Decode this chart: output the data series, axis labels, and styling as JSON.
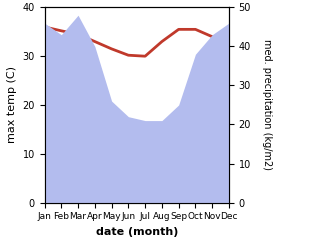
{
  "months": [
    "Jan",
    "Feb",
    "Mar",
    "Apr",
    "May",
    "Jun",
    "Jul",
    "Aug",
    "Sep",
    "Oct",
    "Nov",
    "Dec"
  ],
  "temperature": [
    36.0,
    35.2,
    34.5,
    33.0,
    31.5,
    30.2,
    30.0,
    33.0,
    35.5,
    35.5,
    34.0,
    34.0
  ],
  "precipitation": [
    46,
    43,
    48,
    40,
    26,
    22,
    21,
    21,
    25,
    38,
    43,
    46
  ],
  "temp_color": "#c0392b",
  "precip_fill_color": "#b3bcee",
  "xlabel": "date (month)",
  "ylabel_left": "max temp (C)",
  "ylabel_right": "med. precipitation (kg/m2)",
  "xlim": [
    0,
    11
  ],
  "ylim_left": [
    0,
    40
  ],
  "ylim_right": [
    0,
    50
  ],
  "yticks_left": [
    0,
    10,
    20,
    30,
    40
  ],
  "yticks_right": [
    0,
    10,
    20,
    30,
    40,
    50
  ]
}
